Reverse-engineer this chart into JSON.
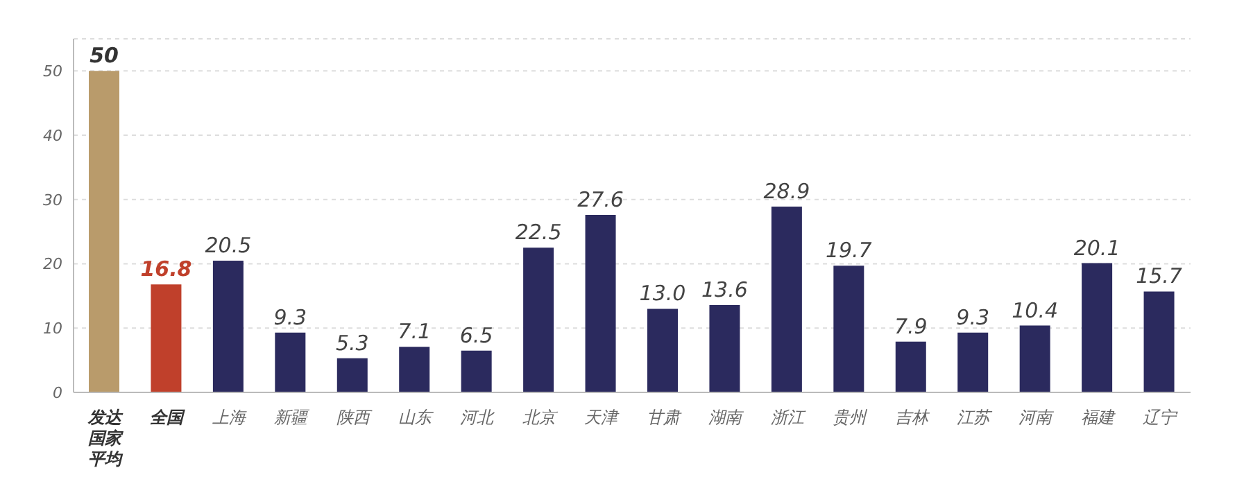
{
  "chart_data": {
    "type": "bar",
    "categories": [
      "发达国家平均",
      "全国",
      "上海",
      "新疆",
      "陕西",
      "山东",
      "河北",
      "北京",
      "天津",
      "甘肃",
      "湖南",
      "浙江",
      "贵州",
      "吉林",
      "江苏",
      "河南",
      "福建",
      "辽宁"
    ],
    "values": [
      50,
      16.8,
      20.5,
      9.3,
      5.3,
      7.1,
      6.5,
      22.5,
      27.6,
      13.0,
      13.6,
      28.9,
      19.7,
      7.9,
      9.3,
      10.4,
      20.1,
      15.7
    ],
    "value_labels": [
      "50",
      "16.8",
      "20.5",
      "9.3",
      "5.3",
      "7.1",
      "6.5",
      "22.5",
      "27.6",
      "13.0",
      "13.6",
      "28.9",
      "19.7",
      "7.9",
      "9.3",
      "10.4",
      "20.1",
      "15.7"
    ],
    "colors": [
      "#b99b6b",
      "#c0402b",
      "#2b2a5e",
      "#2b2a5e",
      "#2b2a5e",
      "#2b2a5e",
      "#2b2a5e",
      "#2b2a5e",
      "#2b2a5e",
      "#2b2a5e",
      "#2b2a5e",
      "#2b2a5e",
      "#2b2a5e",
      "#2b2a5e",
      "#2b2a5e",
      "#2b2a5e",
      "#2b2a5e",
      "#2b2a5e"
    ],
    "ylim": [
      0,
      55
    ],
    "yticks": [
      0,
      10,
      20,
      30,
      40,
      50
    ],
    "grid": "y"
  }
}
